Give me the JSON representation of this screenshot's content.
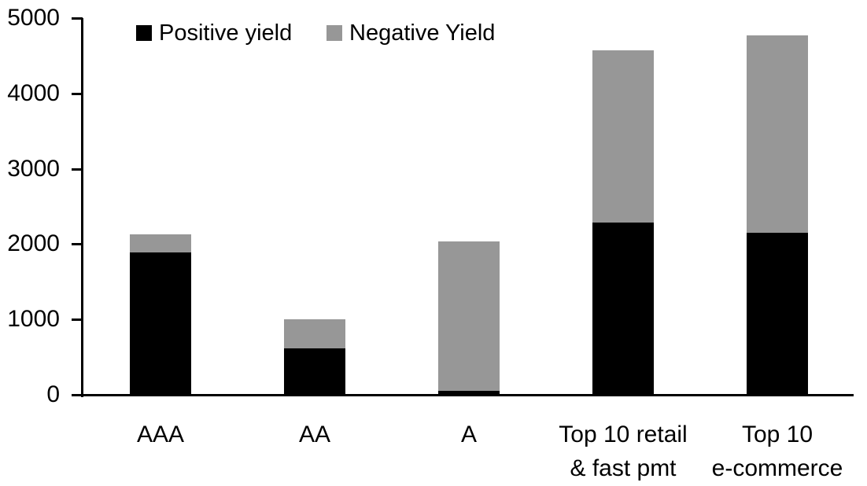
{
  "chart_data": {
    "type": "bar",
    "stacked": true,
    "title": "",
    "xlabel": "",
    "ylabel": "",
    "categories": [
      "AAA",
      "AA",
      "A",
      "Top 10 retail\n& fast pmt",
      "Top 10\ne-commerce"
    ],
    "series": [
      {
        "name": "Positive yield",
        "color": "#000000",
        "values": [
          1890,
          620,
          50,
          2285,
          2150
        ]
      },
      {
        "name": "Negative Yield",
        "color": "#979797",
        "values": [
          235,
          380,
          1985,
          2290,
          2620
        ]
      }
    ],
    "totals": [
      2125,
      1000,
      2035,
      4575,
      4770
    ],
    "ylim": [
      0,
      5000
    ],
    "ytick_step": 1000,
    "y_tick_labels": [
      "0",
      "1000",
      "2000",
      "3000",
      "4000",
      "5000"
    ],
    "grid": false,
    "legend_position": "top-left-inside",
    "axis_color": "#000000",
    "background_color": "#ffffff"
  }
}
